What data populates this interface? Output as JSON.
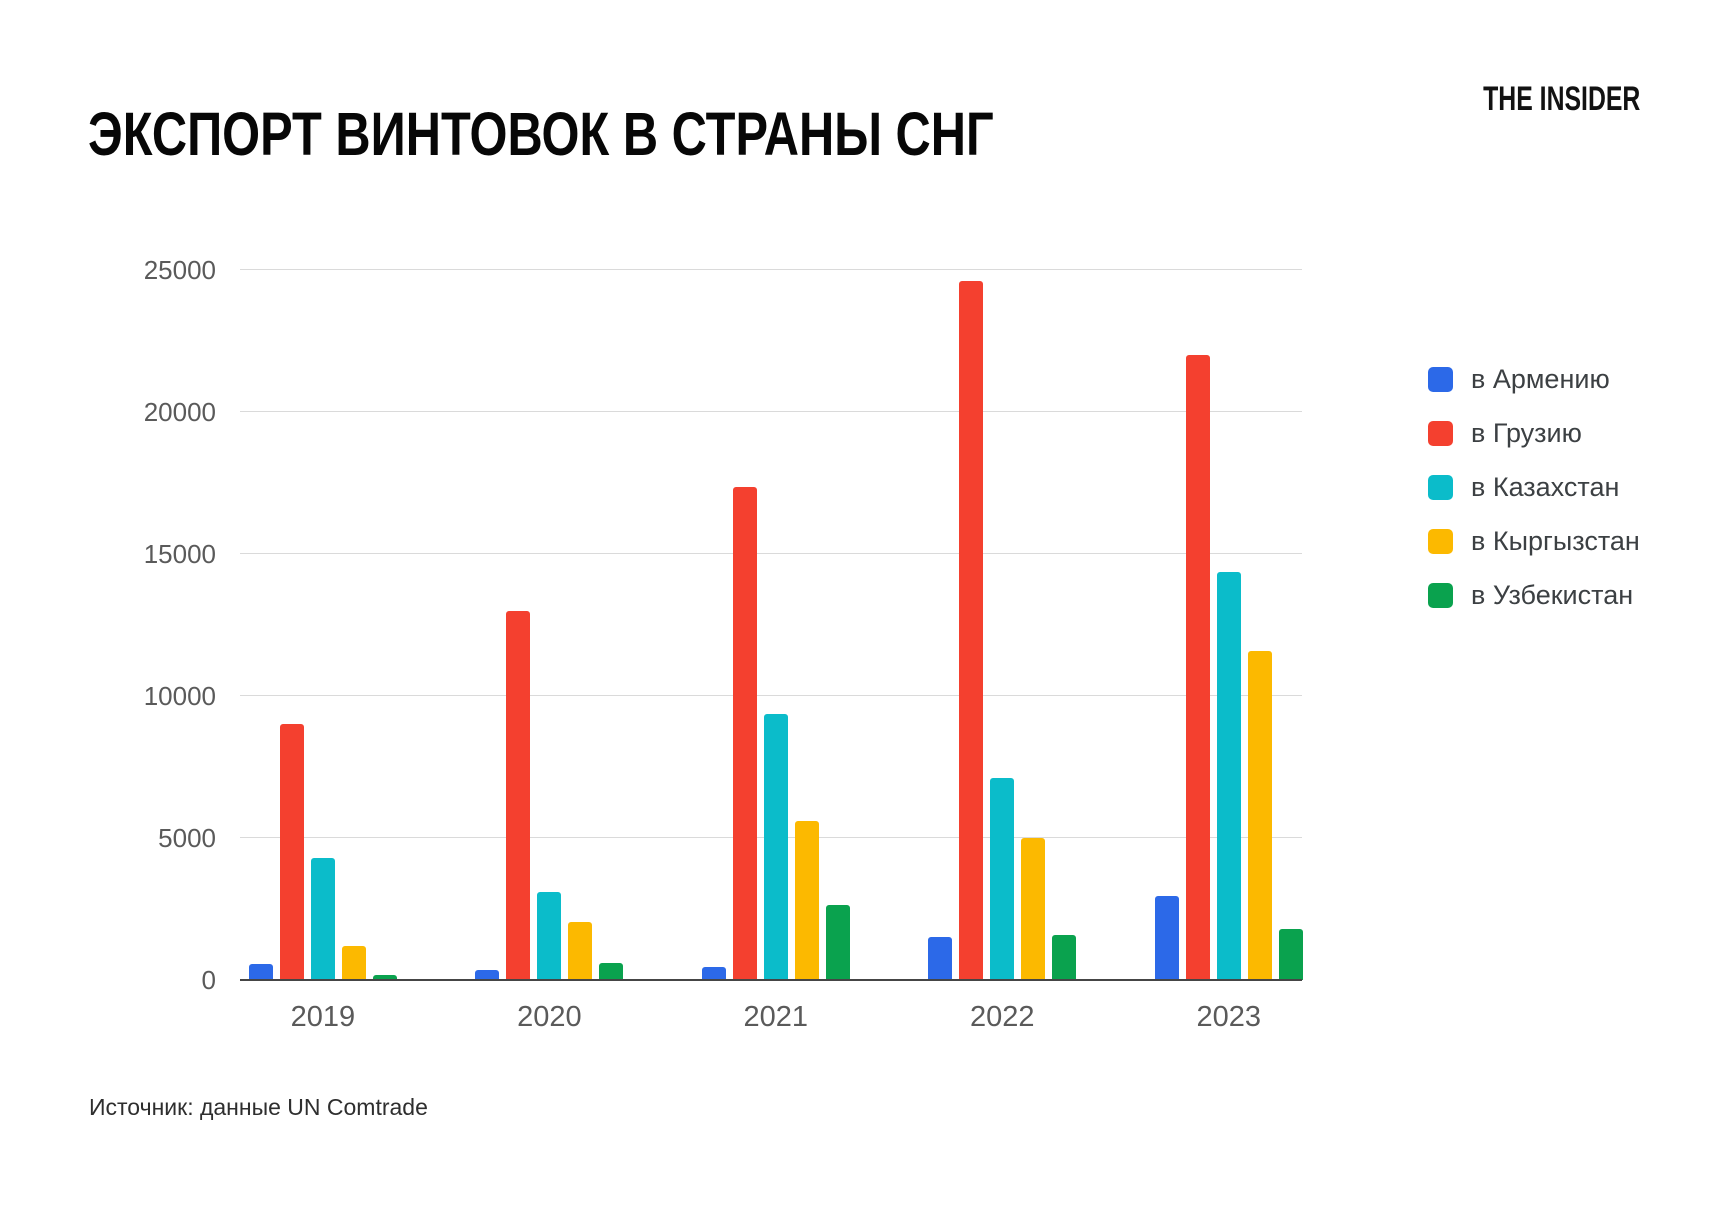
{
  "title": "ЭКСПОРТ ВИНТОВОК В СТРАНЫ СНГ",
  "logo": "THE INSIDER",
  "source": "Источник: данные UN Comtrade",
  "chart_data": {
    "type": "bar",
    "title": "ЭКСПОРТ ВИНТОВОК В СТРАНЫ СНГ",
    "categories": [
      "2019",
      "2020",
      "2021",
      "2022",
      "2023"
    ],
    "series": [
      {
        "name": "в Армению",
        "color": "#2c69e8",
        "values": [
          550,
          350,
          450,
          1500,
          2950
        ]
      },
      {
        "name": "в Грузию",
        "color": "#f4402f",
        "values": [
          9000,
          13000,
          17350,
          24600,
          22000
        ]
      },
      {
        "name": "в Казахстан",
        "color": "#0bbcca",
        "values": [
          4300,
          3100,
          9350,
          7100,
          14350
        ]
      },
      {
        "name": "в Кыргызстан",
        "color": "#fcb900",
        "values": [
          1200,
          2050,
          5600,
          5000,
          11600
        ]
      },
      {
        "name": "в Узбекистан",
        "color": "#0aa24e",
        "values": [
          180,
          600,
          2650,
          1600,
          1800
        ]
      }
    ],
    "xlabel": "",
    "ylabel": "",
    "ylim": [
      0,
      25000
    ],
    "yticks": [
      0,
      5000,
      10000,
      15000,
      20000,
      25000
    ],
    "grid": true,
    "legend_position": "right"
  }
}
